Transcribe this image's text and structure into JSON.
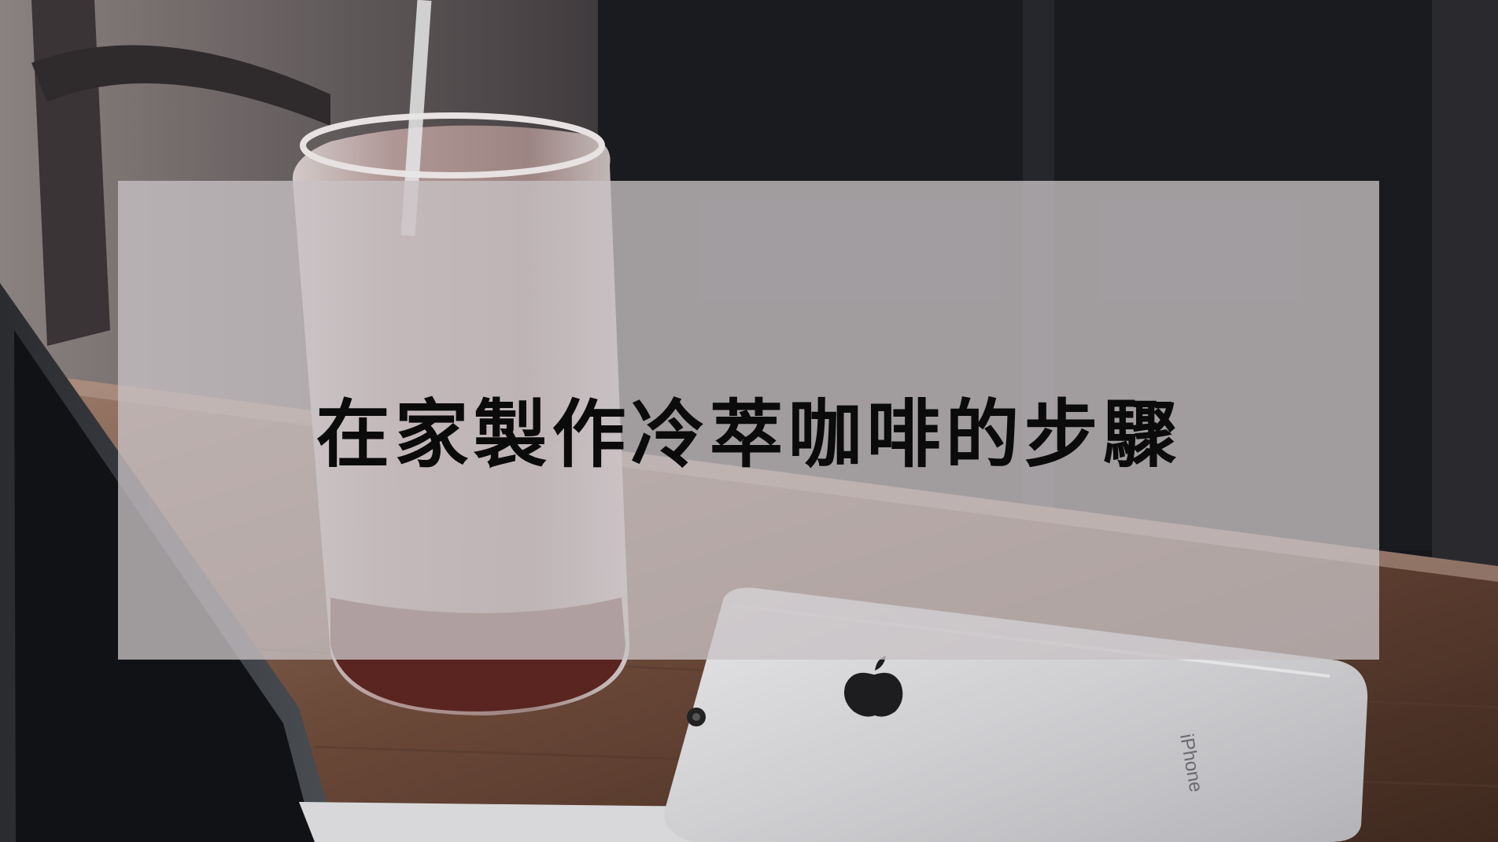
{
  "slide": {
    "title": "在家製作冷萃咖啡的步驟"
  },
  "colors": {
    "overlay": "#c8c2c4",
    "title_text": "#0b0b0b",
    "wall_dark": "#1c1c20",
    "table_wood": "#6b4a38",
    "coffee": "#4a1d18",
    "phone_silver": "#c9c9cb"
  },
  "icons": {
    "phone_logo": "apple-logo-icon"
  },
  "background": {
    "phone": {
      "brand_text": "iPhone"
    }
  }
}
